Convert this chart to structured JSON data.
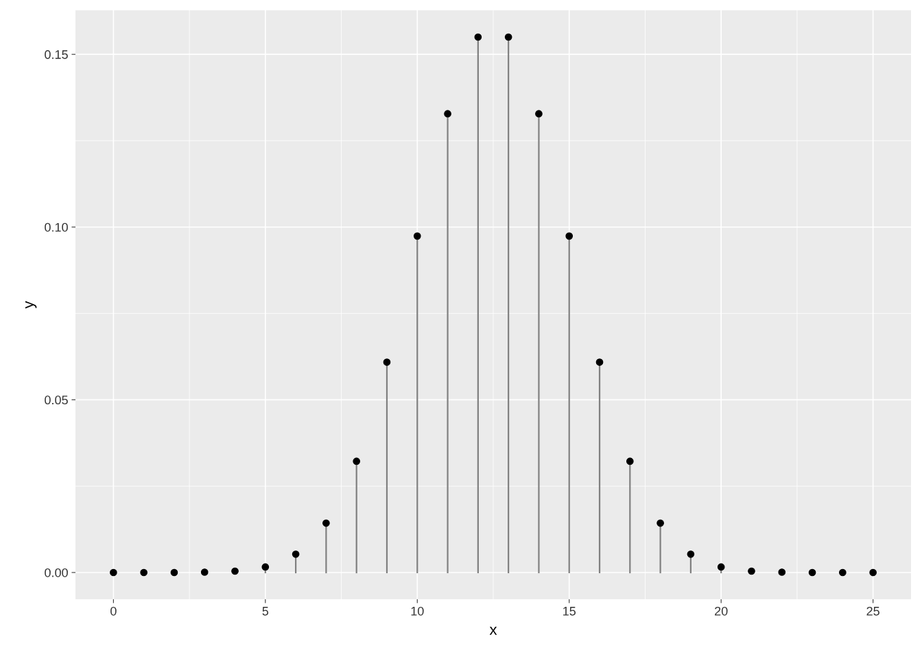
{
  "chart_data": {
    "type": "lollipop",
    "xlabel": "x",
    "ylabel": "y",
    "x": [
      0,
      1,
      2,
      3,
      4,
      5,
      6,
      7,
      8,
      9,
      10,
      11,
      12,
      13,
      14,
      15,
      16,
      17,
      18,
      19,
      20,
      21,
      22,
      23,
      24,
      25
    ],
    "series": [
      {
        "color": "#000000",
        "values": [
          0,
          0,
          0,
          0.0001,
          0.0004,
          0.0016,
          0.0053,
          0.0143,
          0.0322,
          0.0609,
          0.0974,
          0.1328,
          0.155,
          0.155,
          0.1328,
          0.0974,
          0.0609,
          0.0322,
          0.0143,
          0.0053,
          0.0016,
          0.0004,
          0.0001,
          0,
          0,
          0
        ]
      }
    ],
    "xlim": [
      -1.25,
      26.25
    ],
    "xticks": [
      0,
      5,
      10,
      15,
      20,
      25
    ],
    "ylim": [
      -0.00775,
      0.16275
    ],
    "yticks": [
      {
        "value": 0,
        "label": "0.00"
      },
      {
        "value": 0.05,
        "label": "0.05"
      },
      {
        "value": 0.1,
        "label": "0.10"
      },
      {
        "value": 0.15,
        "label": "0.15"
      }
    ],
    "grid": true,
    "marker": "circle",
    "legend": false
  }
}
